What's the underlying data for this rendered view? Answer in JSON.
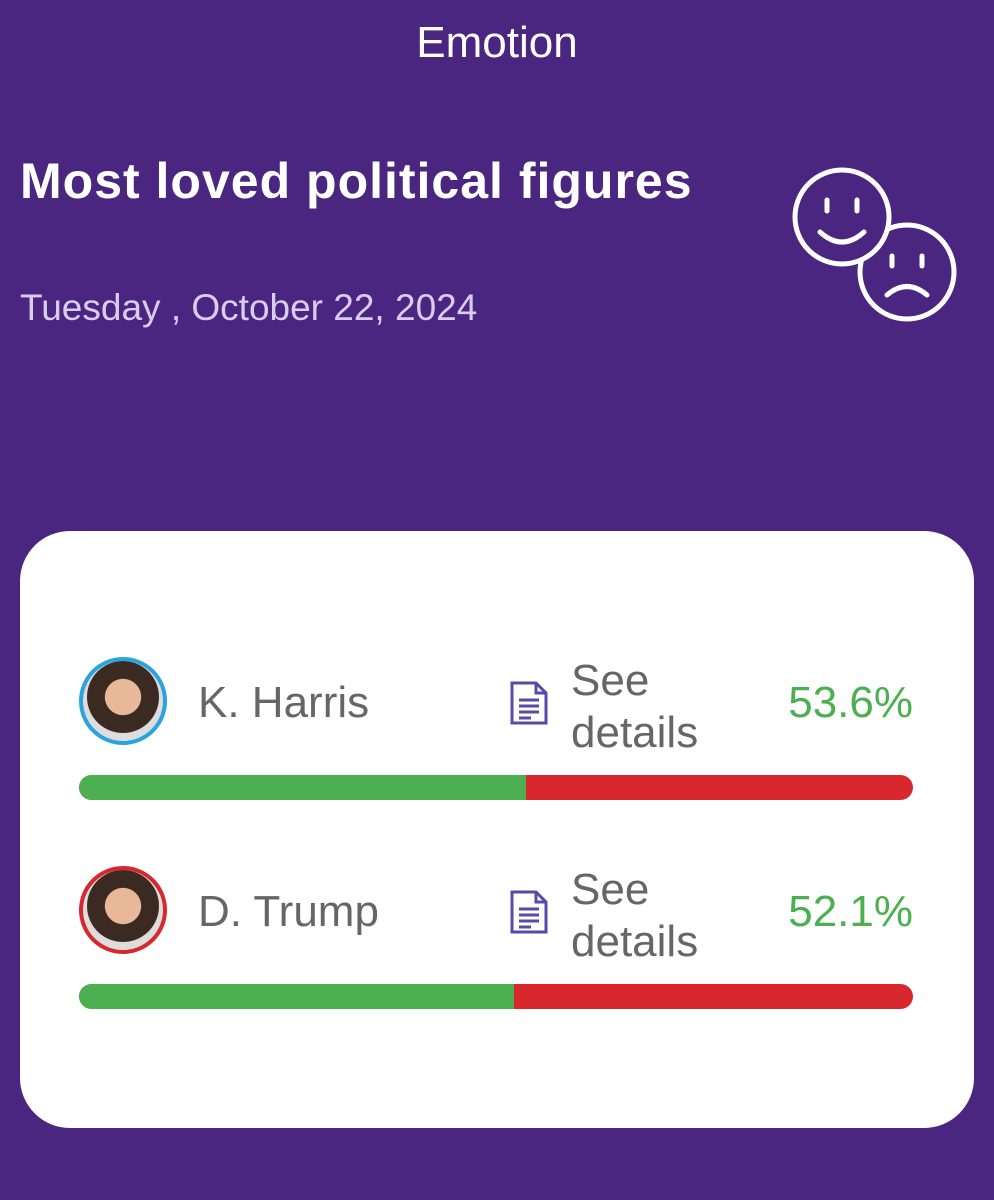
{
  "header": {
    "title": "Emotion"
  },
  "title": "Most loved political figures",
  "date": "Tuesday , October 22, 2024",
  "bar_range": [
    0,
    100
  ],
  "colors": {
    "positive": "#4caf50",
    "negative": "#d9272e"
  },
  "items": [
    {
      "name": "K. Harris",
      "link": "See details",
      "value": 53.6,
      "value_label": "53.6%",
      "ring_color": "#2aa3de"
    },
    {
      "name": "D. Trump",
      "link": "See details",
      "value": 52.1,
      "value_label": "52.1%",
      "ring_color": "#d9272e"
    }
  ]
}
